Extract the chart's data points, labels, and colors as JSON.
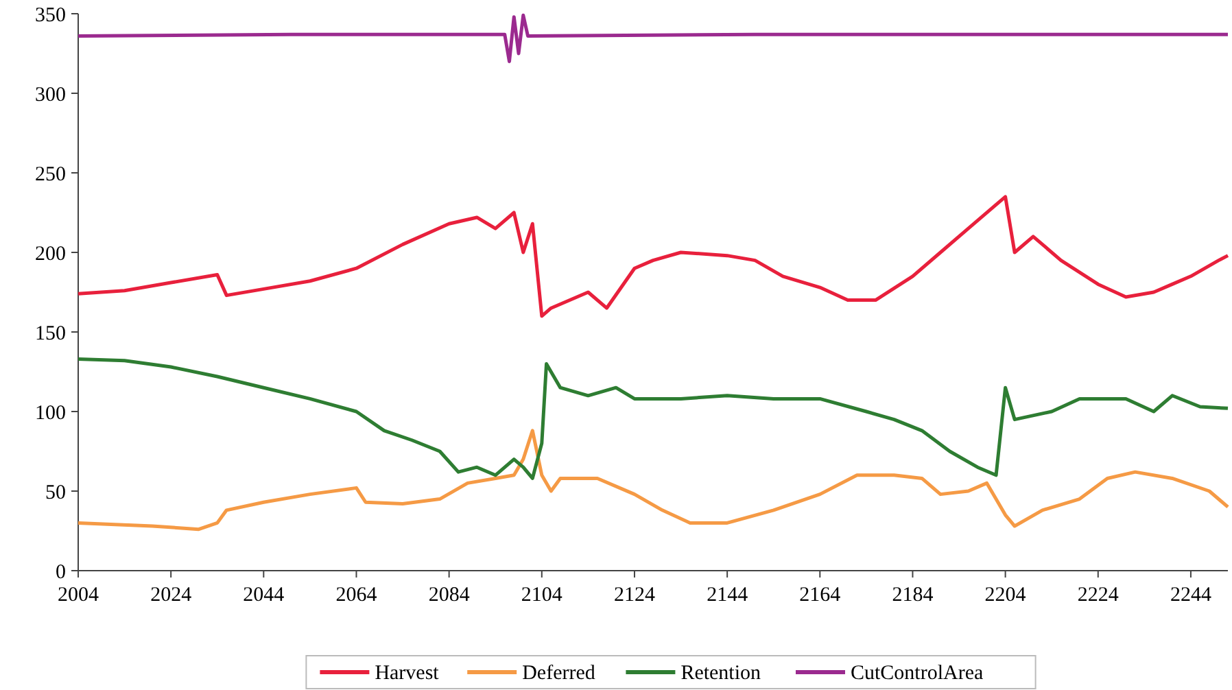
{
  "chart_data": {
    "type": "line",
    "xlim": [
      2004,
      2252
    ],
    "xticks": [
      2004,
      2024,
      2044,
      2064,
      2084,
      2104,
      2124,
      2144,
      2164,
      2184,
      2204,
      2224,
      2244
    ],
    "ylim": [
      0,
      350
    ],
    "yticks": [
      0,
      50,
      100,
      150,
      200,
      250,
      300,
      350
    ],
    "grid": false,
    "legend": "bottom",
    "line_style": "solid",
    "marker": "none",
    "series": [
      {
        "name": "Harvest",
        "color": "#e8203c",
        "x": [
          2004,
          2014,
          2024,
          2034,
          2036,
          2044,
          2054,
          2064,
          2074,
          2084,
          2090,
          2094,
          2098,
          2100,
          2102,
          2104,
          2106,
          2114,
          2118,
          2124,
          2128,
          2134,
          2144,
          2150,
          2156,
          2164,
          2170,
          2176,
          2184,
          2190,
          2196,
          2202,
          2204,
          2206,
          2210,
          2216,
          2224,
          2230,
          2236,
          2240,
          2244,
          2250,
          2252
        ],
        "values": [
          174,
          176,
          181,
          186,
          173,
          177,
          182,
          190,
          205,
          218,
          222,
          215,
          225,
          200,
          218,
          160,
          165,
          175,
          165,
          190,
          195,
          200,
          198,
          195,
          185,
          178,
          170,
          170,
          185,
          200,
          215,
          230,
          235,
          200,
          210,
          195,
          180,
          172,
          175,
          180,
          185,
          195,
          198
        ]
      },
      {
        "name": "Deferred",
        "color": "#f59a45",
        "x": [
          2004,
          2020,
          2030,
          2034,
          2036,
          2044,
          2054,
          2064,
          2066,
          2074,
          2082,
          2088,
          2094,
          2098,
          2100,
          2102,
          2104,
          2106,
          2108,
          2116,
          2124,
          2130,
          2136,
          2144,
          2154,
          2164,
          2172,
          2180,
          2186,
          2190,
          2196,
          2200,
          2204,
          2206,
          2212,
          2220,
          2226,
          2232,
          2240,
          2248,
          2252
        ],
        "values": [
          30,
          28,
          26,
          30,
          38,
          43,
          48,
          52,
          43,
          42,
          45,
          55,
          58,
          60,
          70,
          88,
          60,
          50,
          58,
          58,
          48,
          38,
          30,
          30,
          38,
          48,
          60,
          60,
          58,
          48,
          50,
          55,
          35,
          28,
          38,
          45,
          58,
          62,
          58,
          50,
          40
        ]
      },
      {
        "name": "Retention",
        "color": "#2e7d32",
        "x": [
          2004,
          2014,
          2024,
          2034,
          2044,
          2054,
          2064,
          2070,
          2076,
          2082,
          2086,
          2090,
          2094,
          2098,
          2100,
          2102,
          2104,
          2105,
          2108,
          2114,
          2120,
          2124,
          2134,
          2144,
          2154,
          2164,
          2174,
          2180,
          2186,
          2192,
          2198,
          2202,
          2204,
          2206,
          2214,
          2220,
          2230,
          2236,
          2240,
          2246,
          2252
        ],
        "values": [
          133,
          132,
          128,
          122,
          115,
          108,
          100,
          88,
          82,
          75,
          62,
          65,
          60,
          70,
          65,
          58,
          80,
          130,
          115,
          110,
          115,
          108,
          108,
          110,
          108,
          108,
          100,
          95,
          88,
          75,
          65,
          60,
          115,
          95,
          100,
          108,
          108,
          100,
          110,
          103,
          102
        ]
      },
      {
        "name": "CutControlArea",
        "color": "#9b2a8f",
        "x": [
          2004,
          2050,
          2096,
          2097,
          2098,
          2099,
          2100,
          2101,
          2150,
          2200,
          2252
        ],
        "values": [
          336,
          337,
          337,
          320,
          348,
          325,
          349,
          336,
          337,
          337,
          337
        ]
      }
    ]
  }
}
